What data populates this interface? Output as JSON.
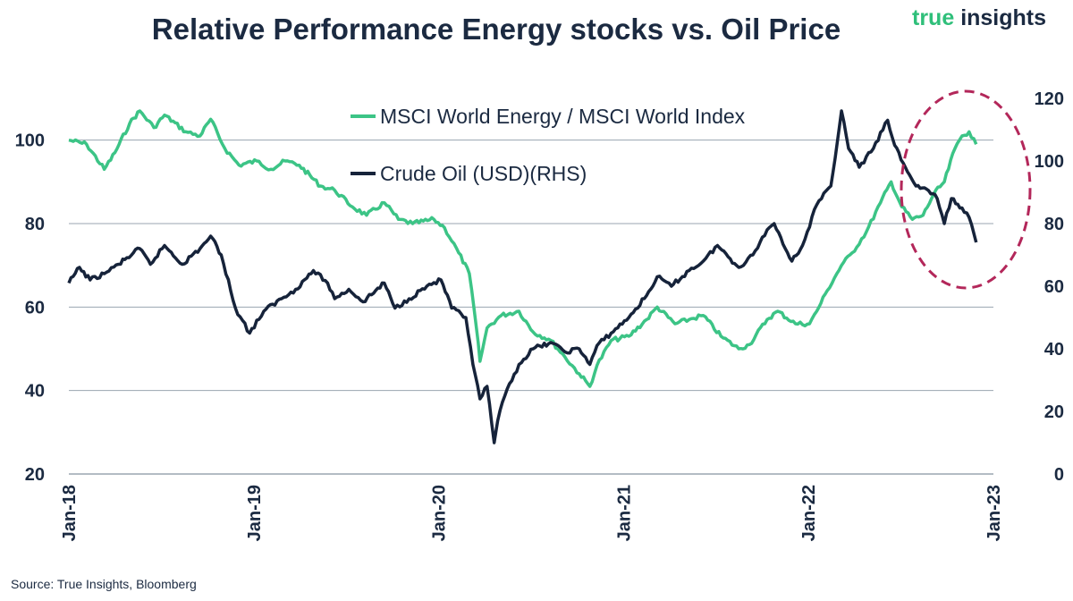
{
  "title": "Relative Performance Energy stocks vs. Oil Price",
  "brand": {
    "word1": "true",
    "word2": "insights"
  },
  "source": "Source: True Insights, Bloomberg",
  "chart_data": {
    "type": "line",
    "title": "Relative Performance Energy stocks vs. Oil Price",
    "x_ticks": [
      "Jan-18",
      "Jan-19",
      "Jan-20",
      "Jan-21",
      "Jan-22",
      "Jan-23"
    ],
    "y_left": {
      "ticks": [
        "20",
        "40",
        "60",
        "80",
        "100"
      ],
      "range": [
        20,
        110
      ]
    },
    "y_right": {
      "ticks": [
        "0",
        "20",
        "40",
        "60",
        "80",
        "100",
        "120"
      ],
      "range": [
        0,
        120
      ]
    },
    "legend_placement": "top-center",
    "grid": "horizontal",
    "series": [
      {
        "name": "MSCI World Energy / MSCI World Index",
        "axis": "left",
        "color": "#3cc486",
        "points": [
          [
            "2018-01-01",
            100
          ],
          [
            "2018-02-05",
            99
          ],
          [
            "2018-03-12",
            93
          ],
          [
            "2018-04-02",
            97
          ],
          [
            "2018-05-01",
            104
          ],
          [
            "2018-05-21",
            107
          ],
          [
            "2018-06-18",
            103
          ],
          [
            "2018-07-09",
            106
          ],
          [
            "2018-08-20",
            102
          ],
          [
            "2018-09-17",
            101
          ],
          [
            "2018-10-08",
            105
          ],
          [
            "2018-11-05",
            98
          ],
          [
            "2018-12-03",
            94
          ],
          [
            "2019-01-07",
            95
          ],
          [
            "2019-02-04",
            93
          ],
          [
            "2019-03-04",
            95
          ],
          [
            "2019-04-01",
            94
          ],
          [
            "2019-05-13",
            89
          ],
          [
            "2019-06-10",
            88
          ],
          [
            "2019-07-15",
            84
          ],
          [
            "2019-08-12",
            82
          ],
          [
            "2019-09-16",
            85
          ],
          [
            "2019-10-14",
            81
          ],
          [
            "2019-11-11",
            80
          ],
          [
            "2019-12-23",
            81
          ],
          [
            "2020-01-13",
            79
          ],
          [
            "2020-02-10",
            73
          ],
          [
            "2020-03-02",
            68
          ],
          [
            "2020-03-16",
            55
          ],
          [
            "2020-03-23",
            47
          ],
          [
            "2020-04-06",
            55
          ],
          [
            "2020-05-04",
            58
          ],
          [
            "2020-06-08",
            59
          ],
          [
            "2020-07-06",
            54
          ],
          [
            "2020-08-10",
            52
          ],
          [
            "2020-09-07",
            48
          ],
          [
            "2020-10-05",
            44
          ],
          [
            "2020-10-26",
            41
          ],
          [
            "2020-11-09",
            46
          ],
          [
            "2020-12-07",
            52
          ],
          [
            "2021-01-11",
            53
          ],
          [
            "2021-02-15",
            57
          ],
          [
            "2021-03-08",
            60
          ],
          [
            "2021-04-12",
            56
          ],
          [
            "2021-05-10",
            57
          ],
          [
            "2021-06-07",
            58
          ],
          [
            "2021-07-12",
            53
          ],
          [
            "2021-08-16",
            50
          ],
          [
            "2021-09-06",
            51
          ],
          [
            "2021-10-11",
            57
          ],
          [
            "2021-11-01",
            59
          ],
          [
            "2021-12-06",
            56
          ],
          [
            "2022-01-03",
            56
          ],
          [
            "2022-01-17",
            59
          ],
          [
            "2022-02-07",
            64
          ],
          [
            "2022-03-07",
            70
          ],
          [
            "2022-03-28",
            73
          ],
          [
            "2022-04-25",
            78
          ],
          [
            "2022-05-23",
            85
          ],
          [
            "2022-06-13",
            90
          ],
          [
            "2022-07-04",
            84
          ],
          [
            "2022-07-25",
            81
          ],
          [
            "2022-08-15",
            82
          ],
          [
            "2022-09-05",
            87
          ],
          [
            "2022-09-26",
            90
          ],
          [
            "2022-10-17",
            98
          ],
          [
            "2022-10-31",
            101
          ],
          [
            "2022-11-14",
            102
          ],
          [
            "2022-11-28",
            99
          ]
        ]
      },
      {
        "name": "Crude Oil (USD)(RHS)",
        "axis": "right",
        "color": "#16233a",
        "points": [
          [
            "2018-01-01",
            61
          ],
          [
            "2018-01-22",
            66
          ],
          [
            "2018-02-12",
            62
          ],
          [
            "2018-03-12",
            64
          ],
          [
            "2018-04-09",
            67
          ],
          [
            "2018-05-21",
            72
          ],
          [
            "2018-06-11",
            67
          ],
          [
            "2018-07-09",
            73
          ],
          [
            "2018-08-13",
            67
          ],
          [
            "2018-09-17",
            72
          ],
          [
            "2018-10-08",
            76
          ],
          [
            "2018-10-29",
            70
          ],
          [
            "2018-11-26",
            53
          ],
          [
            "2018-12-24",
            45
          ],
          [
            "2019-01-21",
            52
          ],
          [
            "2019-02-25",
            56
          ],
          [
            "2019-03-25",
            59
          ],
          [
            "2019-04-29",
            65
          ],
          [
            "2019-05-27",
            61
          ],
          [
            "2019-06-10",
            56
          ],
          [
            "2019-07-08",
            59
          ],
          [
            "2019-08-05",
            55
          ],
          [
            "2019-09-16",
            61
          ],
          [
            "2019-10-07",
            53
          ],
          [
            "2019-11-04",
            56
          ],
          [
            "2019-12-09",
            60
          ],
          [
            "2020-01-06",
            62
          ],
          [
            "2020-01-27",
            53
          ],
          [
            "2020-02-24",
            50
          ],
          [
            "2020-03-09",
            35
          ],
          [
            "2020-03-23",
            24
          ],
          [
            "2020-04-06",
            28
          ],
          [
            "2020-04-20",
            10
          ],
          [
            "2020-04-27",
            17
          ],
          [
            "2020-05-11",
            25
          ],
          [
            "2020-06-08",
            35
          ],
          [
            "2020-07-06",
            40
          ],
          [
            "2020-08-10",
            42
          ],
          [
            "2020-09-07",
            39
          ],
          [
            "2020-10-05",
            40
          ],
          [
            "2020-10-26",
            35
          ],
          [
            "2020-11-09",
            41
          ],
          [
            "2020-12-07",
            45
          ],
          [
            "2021-01-11",
            50
          ],
          [
            "2021-02-15",
            57
          ],
          [
            "2021-03-08",
            63
          ],
          [
            "2021-04-05",
            60
          ],
          [
            "2021-05-10",
            65
          ],
          [
            "2021-06-07",
            68
          ],
          [
            "2021-07-05",
            73
          ],
          [
            "2021-08-16",
            66
          ],
          [
            "2021-09-13",
            70
          ],
          [
            "2021-10-11",
            78
          ],
          [
            "2021-10-25",
            80
          ],
          [
            "2021-11-29",
            68
          ],
          [
            "2021-12-20",
            73
          ],
          [
            "2022-01-17",
            86
          ],
          [
            "2022-02-14",
            92
          ],
          [
            "2022-03-07",
            116
          ],
          [
            "2022-03-21",
            104
          ],
          [
            "2022-04-11",
            98
          ],
          [
            "2022-05-09",
            104
          ],
          [
            "2022-06-06",
            113
          ],
          [
            "2022-06-20",
            105
          ],
          [
            "2022-07-11",
            98
          ],
          [
            "2022-08-01",
            92
          ],
          [
            "2022-08-22",
            91
          ],
          [
            "2022-09-12",
            88
          ],
          [
            "2022-09-26",
            80
          ],
          [
            "2022-10-10",
            88
          ],
          [
            "2022-10-31",
            85
          ],
          [
            "2022-11-14",
            82
          ],
          [
            "2022-11-28",
            74
          ]
        ]
      }
    ]
  }
}
